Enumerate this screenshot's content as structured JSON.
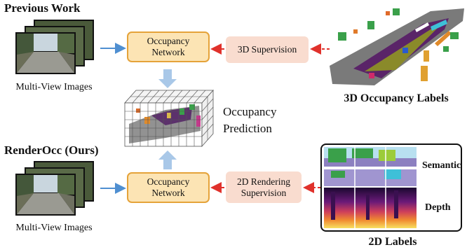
{
  "top": {
    "title": "Previous Work",
    "images_caption": "Multi-View Images",
    "network_label": "Occupancy Network",
    "supervision_label": "3D Supervision",
    "labels_caption": "3D Occupancy Labels"
  },
  "middle": {
    "prediction_line1": "Occupancy",
    "prediction_line2": "Prediction"
  },
  "bottom": {
    "title": "RenderOcc (Ours)",
    "images_caption": "Multi-View Images",
    "network_label": "Occupancy Network",
    "supervision_label": "2D Rendering Supervision",
    "semantic_label": "Semantic",
    "depth_label": "Depth",
    "labels_caption": "2D Labels"
  },
  "colors": {
    "network_fill": "#fce4b4",
    "network_border": "#e5a33a",
    "supervision_fill": "#f9dccf",
    "blue_arrow": "#4f8fd1",
    "red_arrow": "#e0312b"
  }
}
